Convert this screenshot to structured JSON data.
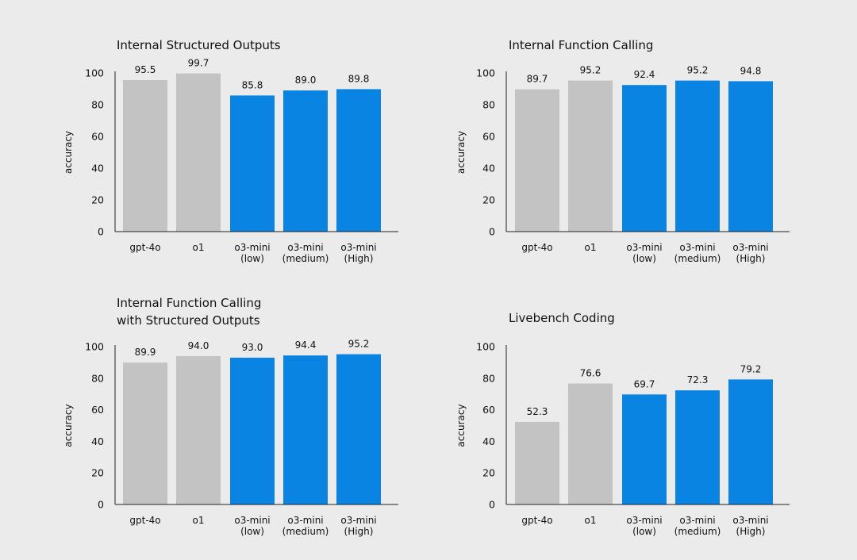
{
  "colors": {
    "background": "#ebebeb",
    "baseline": "#c3c3c3",
    "o3mini": "#0a84e3",
    "axis": "#222222"
  },
  "chart_data": [
    {
      "type": "bar",
      "title_lines": [
        "Internal Structured Outputs"
      ],
      "ylabel": "accuracy",
      "ylim": [
        0,
        100
      ],
      "yticks": [
        "0",
        "20",
        "40",
        "60",
        "80",
        "100"
      ],
      "categories": [
        [
          "gpt-4o"
        ],
        [
          "o1"
        ],
        [
          "o3-mini",
          "(low)"
        ],
        [
          "o3-mini",
          "(medium)"
        ],
        [
          "o3-mini",
          "(High)"
        ]
      ],
      "values": [
        95.5,
        99.7,
        85.8,
        89.0,
        89.8
      ],
      "value_labels": [
        "95.5",
        "99.7",
        "85.8",
        "89.0",
        "89.8"
      ],
      "bar_colors": [
        "#c3c3c3",
        "#c3c3c3",
        "#0a84e3",
        "#0a84e3",
        "#0a84e3"
      ]
    },
    {
      "type": "bar",
      "title_lines": [
        "Internal Function Calling"
      ],
      "ylabel": "accuracy",
      "ylim": [
        0,
        100
      ],
      "yticks": [
        "0",
        "20",
        "40",
        "60",
        "80",
        "100"
      ],
      "categories": [
        [
          "gpt-4o"
        ],
        [
          "o1"
        ],
        [
          "o3-mini",
          "(low)"
        ],
        [
          "o3-mini",
          "(medium)"
        ],
        [
          "o3-mini",
          "(High)"
        ]
      ],
      "values": [
        89.7,
        95.2,
        92.4,
        95.2,
        94.8
      ],
      "value_labels": [
        "89.7",
        "95.2",
        "92.4",
        "95.2",
        "94.8"
      ],
      "bar_colors": [
        "#c3c3c3",
        "#c3c3c3",
        "#0a84e3",
        "#0a84e3",
        "#0a84e3"
      ]
    },
    {
      "type": "bar",
      "title_lines": [
        "Internal Function Calling",
        "with Structured Outputs"
      ],
      "ylabel": "accuracy",
      "ylim": [
        0,
        100
      ],
      "yticks": [
        "0",
        "20",
        "40",
        "60",
        "80",
        "100"
      ],
      "categories": [
        [
          "gpt-4o"
        ],
        [
          "o1"
        ],
        [
          "o3-mini",
          "(low)"
        ],
        [
          "o3-mini",
          "(medium)"
        ],
        [
          "o3-mini",
          "(High)"
        ]
      ],
      "values": [
        89.9,
        94.0,
        93.0,
        94.4,
        95.2
      ],
      "value_labels": [
        "89.9",
        "94.0",
        "93.0",
        "94.4",
        "95.2"
      ],
      "bar_colors": [
        "#c3c3c3",
        "#c3c3c3",
        "#0a84e3",
        "#0a84e3",
        "#0a84e3"
      ]
    },
    {
      "type": "bar",
      "title_lines": [
        "Livebench Coding"
      ],
      "ylabel": "accuracy",
      "ylim": [
        0,
        100
      ],
      "yticks": [
        "0",
        "20",
        "40",
        "60",
        "80",
        "100"
      ],
      "categories": [
        [
          "gpt-4o"
        ],
        [
          "o1"
        ],
        [
          "o3-mini",
          "(low)"
        ],
        [
          "o3-mini",
          "(medium)"
        ],
        [
          "o3-mini",
          "(High)"
        ]
      ],
      "values": [
        52.3,
        76.6,
        69.7,
        72.3,
        79.2
      ],
      "value_labels": [
        "52.3",
        "76.6",
        "69.7",
        "72.3",
        "79.2"
      ],
      "bar_colors": [
        "#c3c3c3",
        "#c3c3c3",
        "#0a84e3",
        "#0a84e3",
        "#0a84e3"
      ]
    }
  ]
}
